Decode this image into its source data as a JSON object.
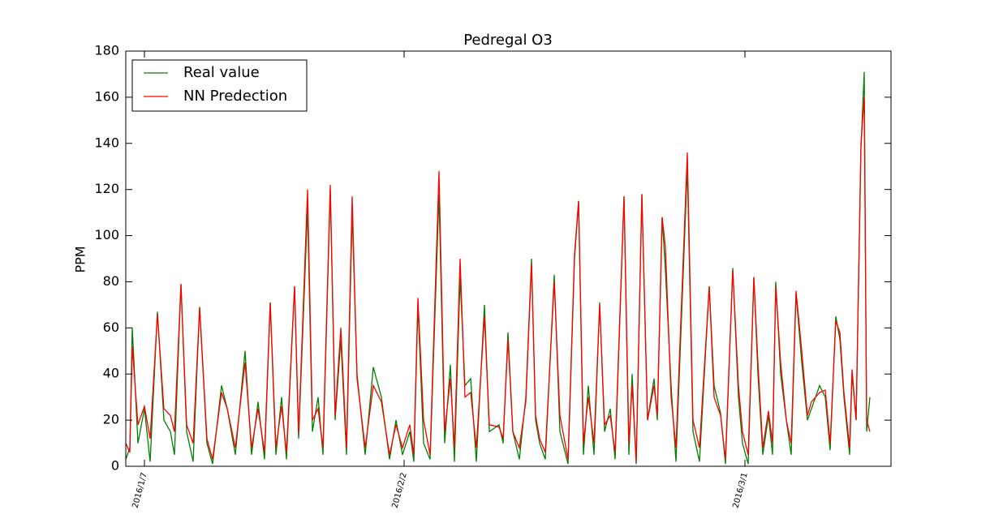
{
  "chart_data": {
    "type": "line",
    "title": "Pedregal O3",
    "y_label": "PPM",
    "x": [
      0,
      5,
      8,
      15,
      23,
      30,
      39,
      47,
      55,
      60,
      68,
      75,
      83,
      91,
      100,
      107,
      118,
      125,
      135,
      147,
      155,
      163,
      171,
      178,
      185,
      192,
      198,
      208,
      213,
      224,
      230,
      237,
      243,
      252,
      258,
      265,
      272,
      279,
      285,
      295,
      305,
      315,
      325,
      333,
      341,
      350,
      355,
      360,
      367,
      375,
      386,
      393,
      400,
      405,
      412,
      418,
      425,
      432,
      442,
      448,
      460,
      465,
      471,
      477,
      485,
      493,
      500,
      505,
      510,
      517,
      528,
      535,
      545,
      553,
      558,
      564,
      570,
      577,
      584,
      590,
      597,
      603,
      614,
      620,
      624,
      629,
      636,
      643,
      651,
      655,
      661,
      665,
      672,
      678,
      692,
      699,
      707,
      719,
      725,
      733,
      739,
      748,
      755,
      760,
      767,
      774,
      779,
      785,
      792,
      797,
      801,
      807,
      814,
      820,
      826,
      833,
      840,
      845,
      855,
      862,
      868,
      875,
      880,
      885,
      892,
      895,
      900,
      906,
      910,
      913,
      917
    ],
    "series": [
      {
        "name": "Real value",
        "color": "#008000",
        "values": [
          3,
          8,
          60,
          10,
          25,
          2,
          67,
          20,
          15,
          5,
          79,
          15,
          2,
          69,
          10,
          1,
          35,
          25,
          5,
          50,
          5,
          28,
          3,
          71,
          5,
          30,
          3,
          78,
          12,
          112,
          15,
          30,
          5,
          120,
          20,
          55,
          5,
          110,
          40,
          5,
          43,
          30,
          3,
          20,
          5,
          15,
          2,
          70,
          10,
          3,
          118,
          10,
          44,
          2,
          82,
          35,
          38,
          2,
          70,
          15,
          18,
          10,
          58,
          15,
          3,
          30,
          90,
          20,
          10,
          3,
          83,
          15,
          1,
          90,
          115,
          5,
          35,
          5,
          71,
          15,
          25,
          3,
          117,
          5,
          40,
          1,
          118,
          20,
          38,
          20,
          108,
          85,
          35,
          2,
          130,
          15,
          2,
          78,
          35,
          23,
          1,
          86,
          30,
          10,
          1,
          82,
          40,
          5,
          22,
          5,
          80,
          40,
          20,
          5,
          75,
          45,
          20,
          25,
          35,
          30,
          7,
          65,
          55,
          30,
          5,
          40,
          20,
          138,
          171,
          15,
          30
        ]
      },
      {
        "name": "NN Predection",
        "color": "#ff0000",
        "values": [
          10,
          6,
          52,
          18,
          26,
          12,
          66,
          25,
          22,
          15,
          79,
          18,
          10,
          69,
          12,
          3,
          32,
          25,
          8,
          45,
          8,
          25,
          6,
          71,
          8,
          26,
          6,
          78,
          14,
          120,
          20,
          25,
          8,
          122,
          22,
          60,
          8,
          117,
          38,
          8,
          35,
          28,
          5,
          18,
          8,
          18,
          5,
          73,
          20,
          5,
          128,
          15,
          38,
          8,
          90,
          30,
          32,
          8,
          65,
          18,
          17,
          12,
          55,
          15,
          8,
          28,
          88,
          22,
          12,
          6,
          80,
          22,
          3,
          92,
          115,
          10,
          30,
          10,
          70,
          18,
          22,
          6,
          117,
          10,
          35,
          2,
          118,
          20,
          35,
          22,
          108,
          95,
          30,
          8,
          136,
          20,
          8,
          78,
          30,
          22,
          3,
          85,
          35,
          15,
          5,
          82,
          45,
          8,
          24,
          10,
          78,
          45,
          20,
          10,
          76,
          50,
          22,
          28,
          32,
          33,
          10,
          63,
          58,
          32,
          8,
          42,
          20,
          140,
          160,
          20,
          15
        ]
      }
    ],
    "xlim": [
      0,
      943
    ],
    "xticks": [
      {
        "value": 23,
        "label": "2016/1/7"
      },
      {
        "value": 343,
        "label": "2016/2/2"
      },
      {
        "value": 763,
        "label": "2016/3/1"
      }
    ],
    "ylim": [
      0,
      180
    ],
    "yticks": [
      0,
      20,
      40,
      60,
      80,
      100,
      120,
      140,
      160,
      180
    ],
    "grid": false,
    "legend": "upper left"
  }
}
